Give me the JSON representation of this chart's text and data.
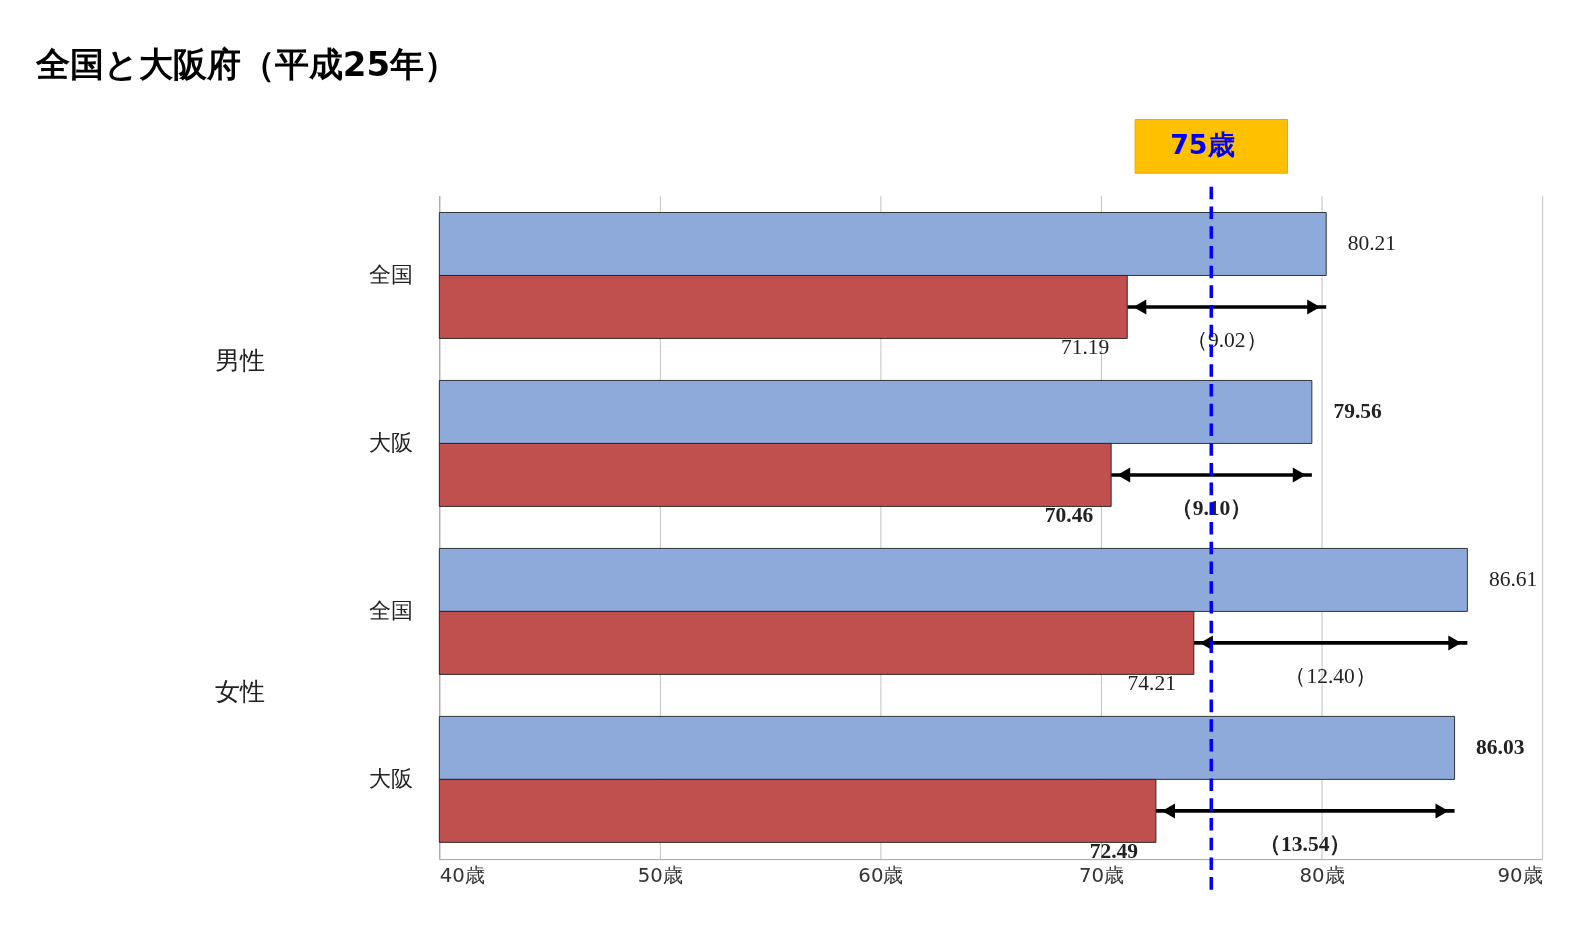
{
  "chart_data": {
    "type": "bar",
    "orientation": "horizontal",
    "title": "全国と大阪府（平成25年）",
    "categories": [
      "全国",
      "大阪",
      "全国",
      "大阪"
    ],
    "series": [
      {
        "color": "#8eaadb",
        "values": [
          80.21,
          79.56,
          86.61,
          86.03
        ]
      },
      {
        "color": "#c0504d",
        "values": [
          71.19,
          70.46,
          74.21,
          72.49
        ]
      }
    ],
    "xlim": [
      40,
      90
    ],
    "xticks": [
      {
        "value": 40,
        "label": "40歳"
      },
      {
        "value": 50,
        "label": "50歳"
      },
      {
        "value": 60,
        "label": "60歳"
      },
      {
        "value": 70,
        "label": "70歳"
      },
      {
        "value": 80,
        "label": "80歳"
      },
      {
        "value": 90,
        "label": "90歳"
      }
    ],
    "grid": "x",
    "legend": false,
    "data_labels": true,
    "ref_lines": [
      {
        "axis": "x",
        "value": 75,
        "label": "75歳",
        "color": "#0000ff",
        "line_style": "dashed"
      }
    ],
    "annotations": [
      "男性",
      "女性",
      "（9.02）",
      "（9.10）",
      "（12.40）",
      "（13.54）"
    ]
  }
}
